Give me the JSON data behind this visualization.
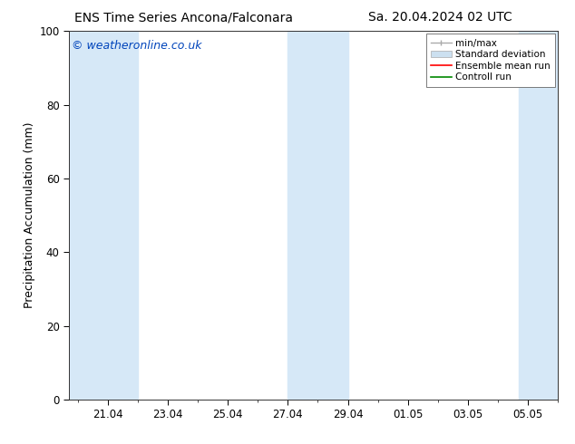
{
  "title_left": "ENS Time Series Ancona/Falconara",
  "title_right": "Sa. 20.04.2024 02 UTC",
  "ylabel": "Precipitation Accumulation (mm)",
  "watermark": "© weatheronline.co.uk",
  "ylim": [
    0,
    100
  ],
  "yticks": [
    0,
    20,
    40,
    60,
    80,
    100
  ],
  "bg_color": "#ffffff",
  "plot_bg_color": "#ffffff",
  "shade_color": "#d6e8f7",
  "xtick_labels": [
    "21.04",
    "23.04",
    "25.04",
    "27.04",
    "29.04",
    "01.05",
    "03.05",
    "05.05"
  ],
  "xtick_positions": [
    1,
    3,
    5,
    7,
    9,
    11,
    13,
    15
  ],
  "xlim": [
    -0.3,
    16.0
  ],
  "shaded_regions": [
    {
      "xmin": -0.3,
      "xmax": 2.0
    },
    {
      "xmin": 7.0,
      "xmax": 9.0
    },
    {
      "xmin": 14.7,
      "xmax": 16.0
    }
  ],
  "legend_labels": [
    "min/max",
    "Standard deviation",
    "Ensemble mean run",
    "Controll run"
  ],
  "legend_colors": [
    "#aaaaaa",
    "#cce0f0",
    "#ff0000",
    "#008800"
  ],
  "title_fontsize": 10,
  "ylabel_fontsize": 9,
  "tick_fontsize": 8.5,
  "watermark_fontsize": 9,
  "legend_fontsize": 7.5
}
